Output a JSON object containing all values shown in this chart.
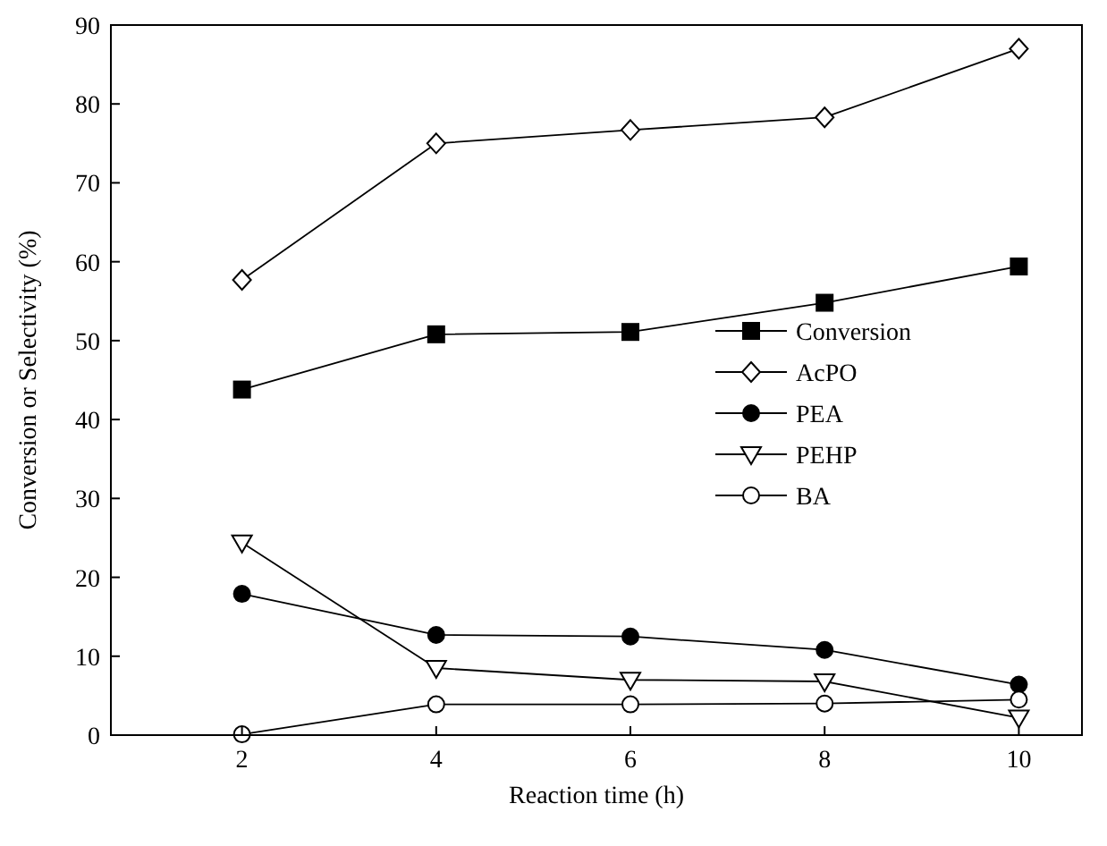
{
  "chart_data": {
    "type": "line",
    "xlabel": "Reaction time (h)",
    "ylabel": "Conversion or Selectivity (%)",
    "x": [
      2,
      4,
      6,
      8,
      10
    ],
    "xlim": [
      0.65,
      10.65
    ],
    "xticks": [
      2,
      4,
      6,
      8,
      10
    ],
    "ylim": [
      0,
      90
    ],
    "yticks": [
      0,
      10,
      20,
      30,
      40,
      50,
      60,
      70,
      80,
      90
    ],
    "grid": false,
    "legend": "right",
    "line_style": "solid",
    "series": [
      {
        "name": "Conversion",
        "color": "#000000",
        "marker": "square",
        "values": [
          43.8,
          50.8,
          51.1,
          54.8,
          59.4
        ]
      },
      {
        "name": "AcPO",
        "color": "#000000",
        "marker": "diamond",
        "values": [
          57.7,
          75,
          76.7,
          78.3,
          87
        ]
      },
      {
        "name": "PEA",
        "color": "#000000",
        "marker": "circle",
        "values": [
          17.9,
          12.7,
          12.5,
          10.8,
          6.4
        ]
      },
      {
        "name": "PEHP",
        "color": "#000000",
        "marker": "triangle",
        "values": [
          24.4,
          8.5,
          7.0,
          6.8,
          2.2
        ]
      },
      {
        "name": "BA",
        "color": "#000000",
        "marker": "circle",
        "values": [
          0.1,
          3.9,
          3.9,
          4.0,
          4.5
        ]
      }
    ]
  }
}
